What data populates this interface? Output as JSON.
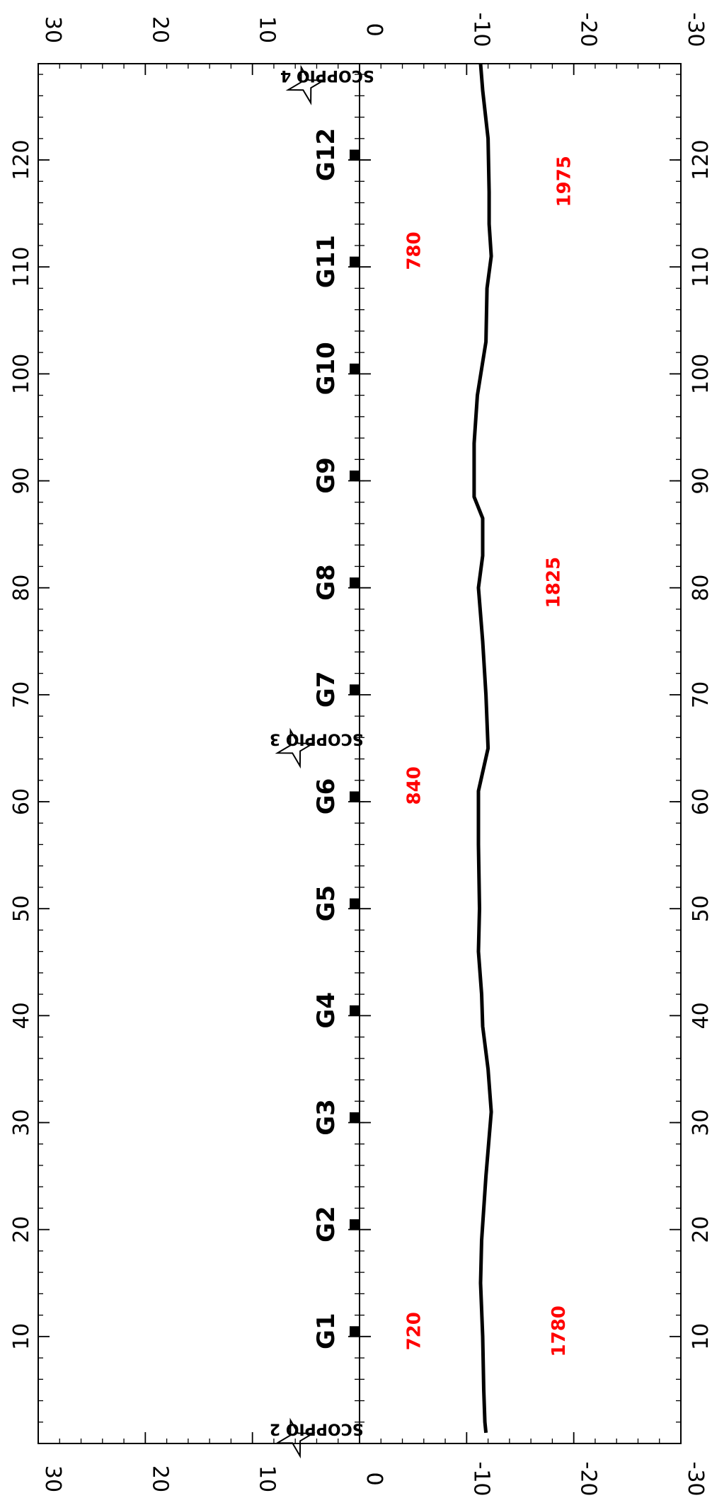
{
  "chart_data": {
    "type": "line",
    "orientation": "rotated-90-clockwise",
    "x_axis": {
      "range": [
        0,
        129
      ],
      "tick_values": [
        10,
        20,
        30,
        40,
        50,
        60,
        70,
        80,
        90,
        100,
        110,
        120
      ],
      "tick_labels": [
        "10",
        "20",
        "30",
        "40",
        "50",
        "60",
        "70",
        "80",
        "90",
        "100",
        "110",
        "120"
      ]
    },
    "upper_panel": {
      "range": [
        0,
        30
      ],
      "tick_values": [
        0,
        10,
        20,
        30
      ],
      "tick_labels": [
        "0",
        "10",
        "20",
        "30"
      ]
    },
    "lower_panel": {
      "range": [
        0,
        -30
      ],
      "tick_values": [
        0,
        -10,
        -20,
        -30
      ],
      "tick_labels": [
        "0",
        "-10",
        "-20",
        "-30"
      ]
    },
    "series": [
      {
        "x": [
          1,
          2,
          5,
          10,
          15,
          19,
          25,
          31,
          35,
          39,
          42,
          46,
          50,
          56,
          61,
          65,
          70,
          75,
          80,
          83,
          86.5,
          88.5,
          93.5,
          98,
          103,
          108,
          111,
          114,
          117,
          122,
          126.5,
          129
        ],
        "y": [
          -11.8,
          -11.7,
          -11.6,
          -11.5,
          -11.3,
          -11.4,
          -11.8,
          -12.3,
          -12.0,
          -11.5,
          -11.4,
          -11.1,
          -11.2,
          -11.1,
          -11.1,
          -12.0,
          -11.8,
          -11.5,
          -11.1,
          -11.5,
          -11.5,
          -10.7,
          -10.7,
          -11.0,
          -11.8,
          -11.9,
          -12.3,
          -12.1,
          -12.1,
          -12.0,
          -11.5,
          -11.3
        ]
      }
    ],
    "stations": [
      {
        "x": 10.5,
        "label": "G1"
      },
      {
        "x": 20.5,
        "label": "G2"
      },
      {
        "x": 30.5,
        "label": "G3"
      },
      {
        "x": 40.5,
        "label": "G4"
      },
      {
        "x": 50.5,
        "label": "G5"
      },
      {
        "x": 60.5,
        "label": "G6"
      },
      {
        "x": 70.5,
        "label": "G7"
      },
      {
        "x": 80.5,
        "label": "G8"
      },
      {
        "x": 90.5,
        "label": "G9"
      },
      {
        "x": 100.5,
        "label": "G10"
      },
      {
        "x": 110.5,
        "label": "G11"
      },
      {
        "x": 120.5,
        "label": "G12"
      }
    ],
    "sites": [
      {
        "x": 0.5,
        "y": 6,
        "label": "SCOPPIO 2"
      },
      {
        "x": 65,
        "y": 6,
        "label": "SCOPPIO 3"
      },
      {
        "x": 127,
        "y": 5,
        "label": "SCOPPIO 4"
      }
    ],
    "annotations": [
      {
        "x": 10.5,
        "y": -5,
        "text": "720"
      },
      {
        "x": 10.5,
        "y": -18.5,
        "text": "1780"
      },
      {
        "x": 61.5,
        "y": -5,
        "text": "840"
      },
      {
        "x": 80.5,
        "y": -18,
        "text": "1825"
      },
      {
        "x": 111.5,
        "y": -5,
        "text": "780"
      },
      {
        "x": 118,
        "y": -19,
        "text": "1975"
      }
    ],
    "colors": {
      "line": "#000000",
      "annotation": "#ff0000",
      "station_marker": "#000000"
    }
  }
}
